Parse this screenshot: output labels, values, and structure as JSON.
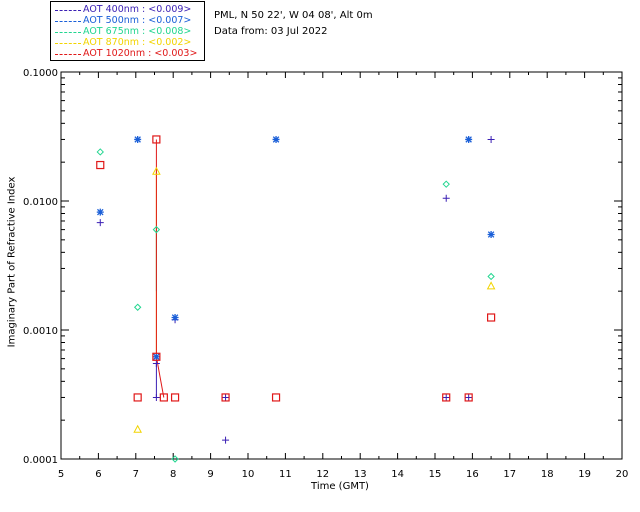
{
  "legend": [
    {
      "label": "AOT  400nm : <0.009>",
      "color": "#3a1fb4"
    },
    {
      "label": "AOT  500nm : <0.007>",
      "color": "#1a5fd8"
    },
    {
      "label": "AOT  675nm : <0.008>",
      "color": "#22d690"
    },
    {
      "label": "AOT  870nm : <0.002>",
      "color": "#f2d400"
    },
    {
      "label": "AOT 1020nm : <0.003>",
      "color": "#e01818"
    }
  ],
  "site": {
    "location": "PML, N 50 22', W 04 08', Alt 0m",
    "date": "Data from: 03 Jul 2022"
  },
  "chart_data": {
    "type": "scatter",
    "title": "",
    "xlabel": "Time (GMT)",
    "ylabel": "Imaginary Part of Refractive Index",
    "xlim": [
      5,
      20
    ],
    "ylim": [
      0.0001,
      0.1
    ],
    "yscale": "log",
    "xticks": [
      "5",
      "6",
      "7",
      "8",
      "9",
      "10",
      "11",
      "12",
      "13",
      "14",
      "15",
      "16",
      "17",
      "18",
      "19",
      "20"
    ],
    "yticks": [
      "0.0001",
      "0.0010",
      "0.0100",
      "0.1000"
    ],
    "series": [
      {
        "name": "AOT 400nm",
        "marker": "plus",
        "color": "#3a1fb4",
        "points": [
          [
            6.05,
            0.0068
          ],
          [
            7.55,
            0.00055
          ],
          [
            7.55,
            0.0003
          ],
          [
            8.05,
            0.0012
          ],
          [
            9.4,
            0.00014
          ],
          [
            9.4,
            0.0003
          ],
          [
            15.3,
            0.0003
          ],
          [
            15.3,
            0.0105
          ],
          [
            15.9,
            0.0003
          ],
          [
            16.5,
            0.03
          ]
        ]
      },
      {
        "name": "AOT 500nm",
        "marker": "asterisk",
        "color": "#1a5fd8",
        "points": [
          [
            6.05,
            0.0082
          ],
          [
            7.05,
            0.03
          ],
          [
            7.55,
            0.00062
          ],
          [
            8.05,
            0.00125
          ],
          [
            10.75,
            0.03
          ],
          [
            15.9,
            0.03
          ],
          [
            16.5,
            0.0055
          ]
        ]
      },
      {
        "name": "AOT 675nm",
        "marker": "diamond",
        "color": "#22d690",
        "points": [
          [
            6.05,
            0.024
          ],
          [
            7.05,
            0.0015
          ],
          [
            7.55,
            0.006
          ],
          [
            8.05,
            0.0001
          ],
          [
            15.3,
            0.0135
          ],
          [
            16.5,
            0.0026
          ]
        ]
      },
      {
        "name": "AOT 870nm",
        "marker": "triangle",
        "color": "#f2d400",
        "points": [
          [
            7.05,
            0.00017
          ],
          [
            7.55,
            0.017
          ],
          [
            16.5,
            0.0022
          ]
        ]
      },
      {
        "name": "AOT 1020nm",
        "marker": "square",
        "color": "#e01818",
        "points": [
          [
            6.05,
            0.019
          ],
          [
            7.05,
            0.0003
          ],
          [
            7.55,
            0.03
          ],
          [
            7.55,
            0.00062
          ],
          [
            7.75,
            0.0003
          ],
          [
            8.05,
            0.0003
          ],
          [
            9.4,
            0.0003
          ],
          [
            10.75,
            0.0003
          ],
          [
            15.3,
            0.0003
          ],
          [
            15.9,
            0.0003
          ],
          [
            16.5,
            0.00125
          ]
        ]
      }
    ],
    "lines": [
      {
        "color": "#f2d400",
        "points": [
          [
            7.55,
            0.017
          ],
          [
            7.55,
            0.00062
          ]
        ]
      },
      {
        "color": "#22d690",
        "points": [
          [
            7.55,
            0.006
          ],
          [
            7.55,
            0.002
          ]
        ]
      },
      {
        "color": "#e01818",
        "points": [
          [
            7.55,
            0.03
          ],
          [
            7.55,
            0.00062
          ],
          [
            7.75,
            0.0003
          ]
        ]
      },
      {
        "color": "#3a1fb4",
        "points": [
          [
            7.55,
            0.00055
          ],
          [
            7.55,
            0.0003
          ]
        ]
      }
    ]
  }
}
